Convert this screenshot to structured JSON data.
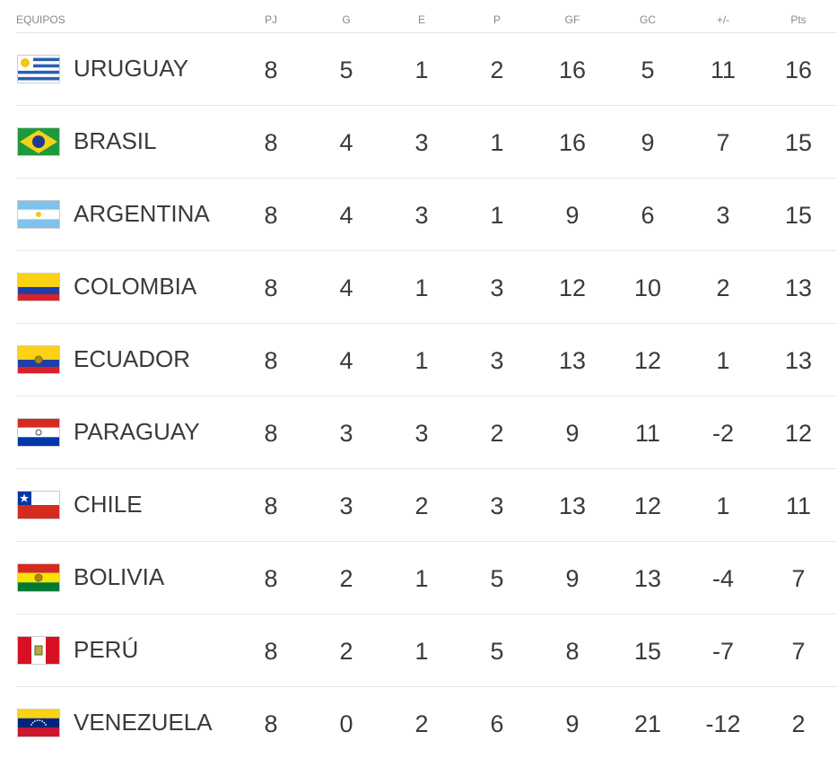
{
  "table": {
    "header": [
      "EQUIPOS",
      "PJ",
      "G",
      "E",
      "P",
      "GF",
      "GC",
      "+/-",
      "Pts"
    ],
    "rows": [
      [
        "URUGUAY",
        8,
        5,
        1,
        2,
        16,
        5,
        11,
        16
      ],
      [
        "BRASIL",
        8,
        4,
        3,
        1,
        16,
        9,
        7,
        15
      ],
      [
        "ARGENTINA",
        8,
        4,
        3,
        1,
        9,
        6,
        3,
        15
      ],
      [
        "COLOMBIA",
        8,
        4,
        1,
        3,
        12,
        10,
        2,
        13
      ],
      [
        "ECUADOR",
        8,
        4,
        1,
        3,
        13,
        12,
        1,
        13
      ],
      [
        "PARAGUAY",
        8,
        3,
        3,
        2,
        9,
        11,
        -2,
        12
      ],
      [
        "CHILE",
        8,
        3,
        2,
        3,
        13,
        12,
        1,
        11
      ],
      [
        "BOLIVIA",
        8,
        2,
        1,
        5,
        9,
        13,
        -4,
        7
      ],
      [
        "PERÚ",
        8,
        2,
        1,
        5,
        8,
        15,
        -7,
        7
      ],
      [
        "VENEZUELA",
        8,
        0,
        2,
        6,
        9,
        21,
        -12,
        2
      ]
    ]
  }
}
